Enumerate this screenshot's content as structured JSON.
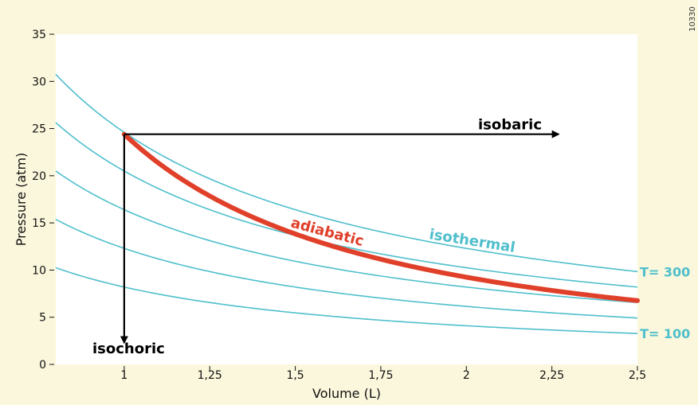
{
  "figure_id": "10330",
  "chart_data": {
    "type": "line",
    "xlabel": "Volume (L)",
    "ylabel": "Pressure (atm)",
    "xlim": [
      0.8,
      2.5
    ],
    "ylim": [
      0,
      35
    ],
    "xticks": [
      1,
      1.25,
      1.5,
      1.75,
      2,
      2.25,
      2.5
    ],
    "xtick_labels": [
      "1",
      "1,25",
      "1,5",
      "1,75",
      "2",
      "2,25",
      "2,5"
    ],
    "yticks": [
      0,
      5,
      10,
      15,
      20,
      25,
      30,
      35
    ],
    "ytick_labels": [
      "0",
      "5",
      "10",
      "15",
      "20",
      "25",
      "30",
      "35"
    ],
    "colors": {
      "isotherm": "#4fbfcc",
      "adiabatic": "#e0402a",
      "arrow": "#000000",
      "background": "#fbf7dc",
      "plot": "#ffffff"
    },
    "isotherms": [
      {
        "P_at_1L": 24.6,
        "label": "T= 300"
      },
      {
        "P_at_1L": 20.5,
        "label": ""
      },
      {
        "P_at_1L": 16.4,
        "label": ""
      },
      {
        "P_at_1L": 12.3,
        "label": ""
      },
      {
        "P_at_1L": 8.2,
        "label": "T= 100"
      }
    ],
    "adiabatic": {
      "P_at_1L": 24.4,
      "gamma": 1.4,
      "x_range": [
        1,
        2.5
      ]
    },
    "isobaric": {
      "P": 24.4,
      "x_from": 1,
      "x_to": 2.25
    },
    "isochoric": {
      "V": 1,
      "y_from": 24.4,
      "y_to": 3
    },
    "annotations": {
      "isobaric": "isobaric",
      "isochoric": "isochoric",
      "adiabatic": "adiabatic",
      "isothermal": "isothermal"
    }
  }
}
